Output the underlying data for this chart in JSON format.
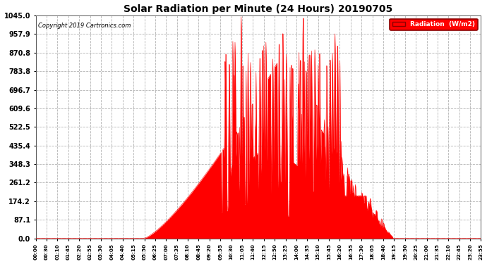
{
  "title": "Solar Radiation per Minute (24 Hours) 20190705",
  "copyright": "Copyright 2019 Cartronics.com",
  "legend_label": "Radiation  (W/m2)",
  "fill_color": "#FF0000",
  "line_color": "#FF0000",
  "bg_color": "#FFFFFF",
  "grid_color": "#AAAAAA",
  "yticks": [
    0.0,
    87.1,
    174.2,
    261.2,
    348.3,
    435.4,
    522.5,
    609.6,
    696.7,
    783.8,
    870.8,
    957.9,
    1045.0
  ],
  "ymax": 1045.0,
  "ymin": 0.0,
  "xtick_labels": [
    "00:00",
    "00:30",
    "01:10",
    "01:45",
    "02:20",
    "02:55",
    "03:30",
    "04:05",
    "04:40",
    "05:15",
    "05:50",
    "06:25",
    "07:00",
    "07:35",
    "08:10",
    "08:45",
    "09:20",
    "09:55",
    "10:30",
    "11:05",
    "11:40",
    "12:15",
    "12:50",
    "13:25",
    "14:00",
    "14:35",
    "15:10",
    "15:45",
    "16:20",
    "16:55",
    "17:30",
    "18:05",
    "18:40",
    "19:15",
    "19:50",
    "20:25",
    "21:00",
    "21:35",
    "22:10",
    "22:45",
    "23:20",
    "23:55"
  ],
  "sunrise_minute": 350,
  "sunset_minute": 1155,
  "peak_minute": 810,
  "peak_value": 900
}
